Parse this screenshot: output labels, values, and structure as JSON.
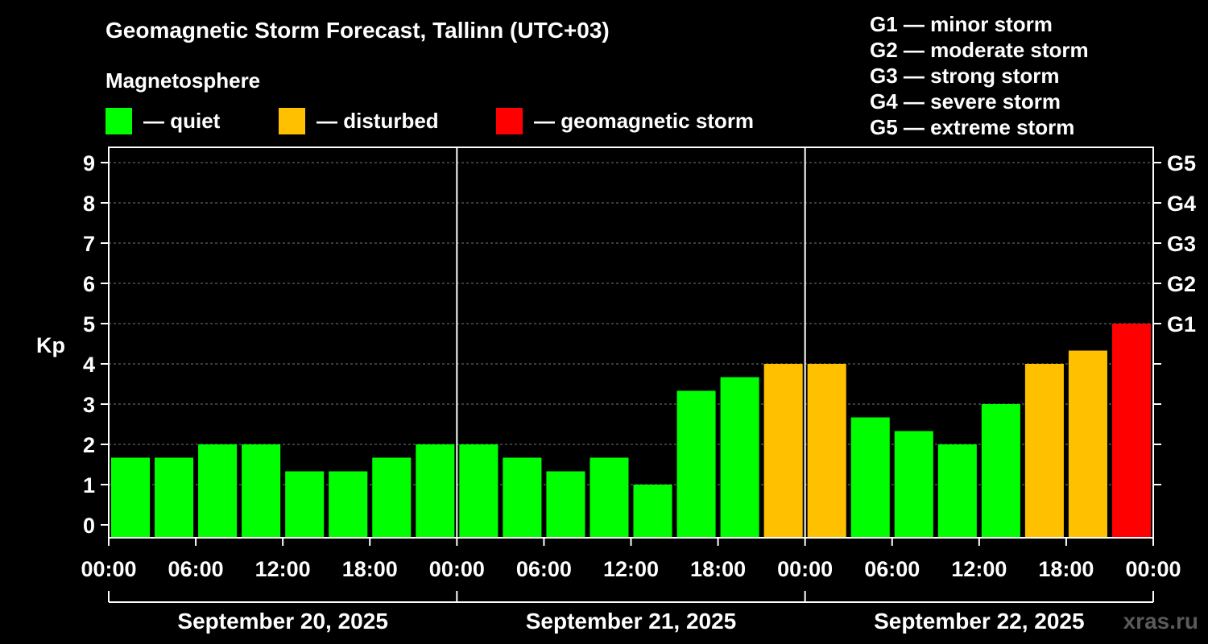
{
  "title": "Geomagnetic Storm Forecast, Tallinn (UTC+03)",
  "legend": {
    "heading": "Magnetosphere",
    "items": [
      {
        "label": "— quiet",
        "color": "#00ff00"
      },
      {
        "label": "— disturbed",
        "color": "#ffc000"
      },
      {
        "label": "— geomagnetic storm",
        "color": "#ff0000"
      }
    ]
  },
  "storm_scale": [
    "G1 — minor storm",
    "G2 — moderate storm",
    "G3 — strong storm",
    "G4 — severe storm",
    "G5 — extreme storm"
  ],
  "watermark": "xras.ru",
  "chart_data": {
    "type": "bar",
    "title": "Geomagnetic Storm Forecast, Tallinn (UTC+03)",
    "ylabel": "Kp",
    "ylim": [
      0,
      9
    ],
    "yticks": [
      0,
      1,
      2,
      3,
      4,
      5,
      6,
      7,
      8,
      9
    ],
    "right_axis": [
      {
        "kp": 5,
        "label": "G1"
      },
      {
        "kp": 6,
        "label": "G2"
      },
      {
        "kp": 7,
        "label": "G3"
      },
      {
        "kp": 8,
        "label": "G4"
      },
      {
        "kp": 9,
        "label": "G5"
      }
    ],
    "xtick_labels": [
      "00:00",
      "06:00",
      "12:00",
      "18:00",
      "00:00",
      "06:00",
      "12:00",
      "18:00",
      "00:00",
      "06:00",
      "12:00",
      "18:00",
      "00:00"
    ],
    "days": [
      "September 20, 2025",
      "September 21, 2025",
      "September 22, 2025"
    ],
    "interval_hours": 3,
    "colors": {
      "quiet": "#00ff00",
      "disturbed": "#ffc000",
      "storm": "#ff0000"
    },
    "values": [
      1.67,
      1.67,
      2.0,
      2.0,
      1.33,
      1.33,
      1.67,
      2.0,
      2.0,
      1.67,
      1.33,
      1.67,
      1.0,
      3.33,
      3.67,
      4.0,
      4.0,
      2.67,
      2.33,
      2.0,
      3.0,
      4.0,
      4.33,
      5.0
    ],
    "categories": [
      "quiet",
      "quiet",
      "quiet",
      "quiet",
      "quiet",
      "quiet",
      "quiet",
      "quiet",
      "quiet",
      "quiet",
      "quiet",
      "quiet",
      "quiet",
      "quiet",
      "quiet",
      "disturbed",
      "disturbed",
      "quiet",
      "quiet",
      "quiet",
      "quiet",
      "disturbed",
      "disturbed",
      "storm"
    ],
    "grid": true
  }
}
